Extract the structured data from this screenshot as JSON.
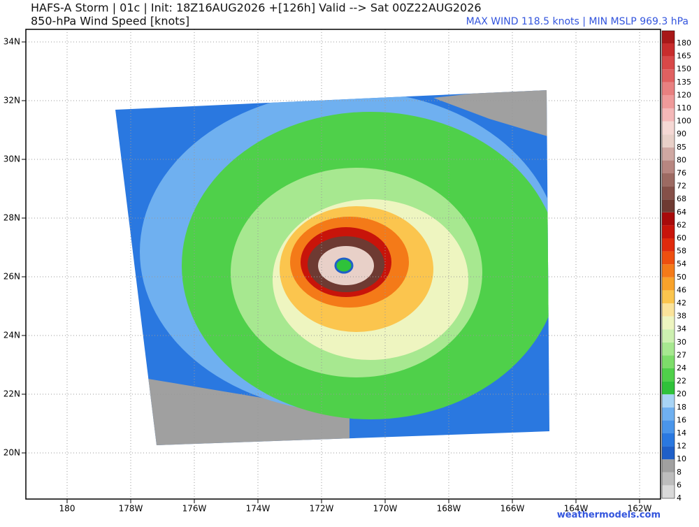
{
  "header": {
    "title": "HAFS-A Storm | 01c | Init: 18Z16AUG2026 +[126h] Valid --> Sat 00Z22AUG2026",
    "subtitle": "850-hPa Wind Speed [knots]",
    "info": "MAX WIND 118.5 knots | MIN MSLP 969.3 hPa"
  },
  "map": {
    "lat_labels": [
      "34N",
      "32N",
      "30N",
      "28N",
      "26N",
      "24N",
      "22N",
      "20N"
    ],
    "lon_labels": [
      "180",
      "178W",
      "176W",
      "174W",
      "172W",
      "170W",
      "168W",
      "166W",
      "164W",
      "162W"
    ]
  },
  "colorbar": {
    "levels": [
      4,
      6,
      8,
      10,
      12,
      14,
      16,
      18,
      20,
      22,
      24,
      27,
      30,
      34,
      38,
      42,
      46,
      50,
      54,
      58,
      60,
      62,
      64,
      68,
      72,
      76,
      80,
      85,
      90,
      100,
      110,
      120,
      135,
      150,
      165,
      180
    ],
    "colors": [
      "#d9d9d9",
      "#bdbdbd",
      "#a0a0a0",
      "#1f5fc8",
      "#2a78e0",
      "#4a95ea",
      "#6fb0f0",
      "#a8d4f5",
      "#2fc23a",
      "#4fd04a",
      "#7ddd6a",
      "#a7e890",
      "#cdf0b0",
      "#eef5c0",
      "#fbe39a",
      "#fbc54e",
      "#f8a22a",
      "#f47a18",
      "#ee4f0f",
      "#e02a0c",
      "#c8140a",
      "#a80a0a",
      "#6e3a32",
      "#855048",
      "#9c6a62",
      "#b78680",
      "#cfa8a2",
      "#e8d0c8",
      "#f5d8d4",
      "#f4b8b8",
      "#ef9a9a",
      "#e88080",
      "#e06060",
      "#d84848",
      "#c82c2c",
      "#a81818"
    ]
  },
  "footer": {
    "watermark": "weathermodels.com"
  }
}
